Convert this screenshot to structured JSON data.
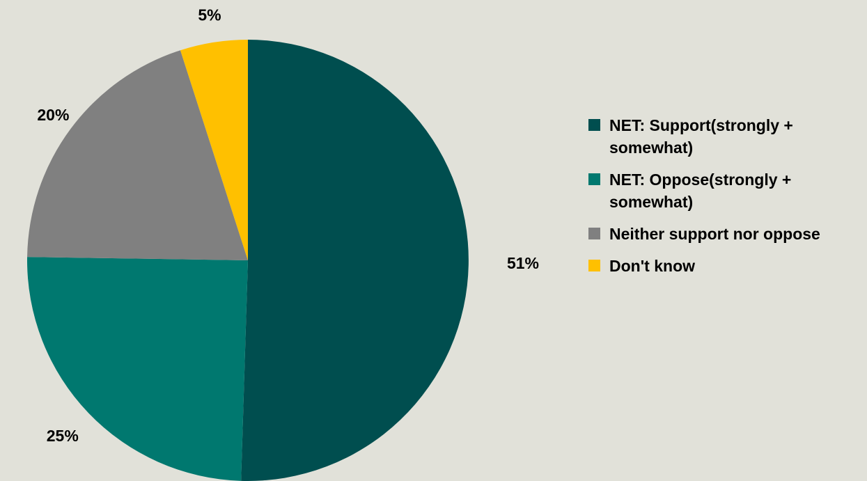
{
  "chart_data": {
    "type": "pie",
    "title": "",
    "categories": [
      "NET: Support(strongly + somewhat)",
      "NET: Oppose(strongly + somewhat)",
      "Neither support nor oppose",
      "Don't know"
    ],
    "values": [
      51,
      25,
      20,
      5
    ],
    "data_labels": [
      "51%",
      "25%",
      "20%",
      "5%"
    ],
    "colors": [
      "#004e4f",
      "#00786f",
      "#808080",
      "#ffc000"
    ],
    "legend_position": "right",
    "start_angle": "top, clockwise"
  },
  "legend": {
    "items": [
      {
        "label": "NET: Support(strongly + somewhat)",
        "color": "#004e4f"
      },
      {
        "label": "NET: Oppose(strongly + somewhat)",
        "color": "#00786f"
      },
      {
        "label": "Neither support nor oppose",
        "color": "#808080"
      },
      {
        "label": "Don't know",
        "color": "#ffc000"
      }
    ]
  }
}
